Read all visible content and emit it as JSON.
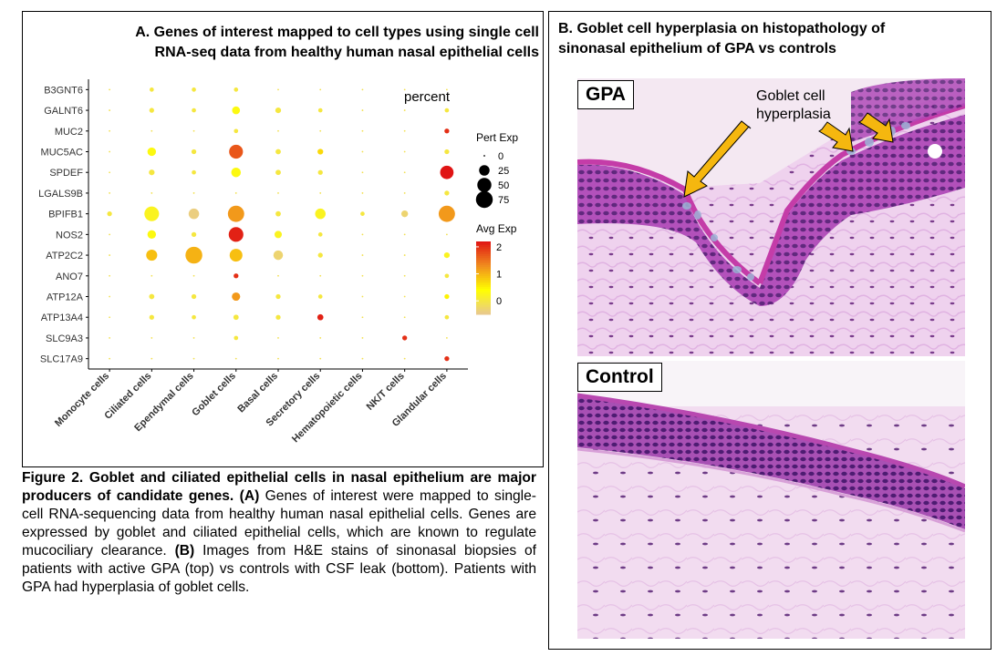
{
  "panelA": {
    "title_line1": "A. Genes of interest mapped to cell types using single cell",
    "title_line2": "RNA-seq data from healthy human nasal epithelial cells"
  },
  "panelB": {
    "title_line1": "B. Goblet cell hyperplasia on histopathology of",
    "title_line2": "sinonasal epithelium of GPA vs controls",
    "gpa_label": "GPA",
    "control_label": "Control",
    "annotation_line1": "Goblet cell",
    "annotation_line2": "hyperplasia"
  },
  "caption": {
    "bold": "Figure 2. Goblet and ciliated epithelial cells in nasal epithelium are major producers of candidate genes.",
    "bold_a": "(A)",
    "text_a": "Genes of interest were mapped to single-cell RNA-sequencing data from healthy human nasal epithelial cells. Genes are expressed by goblet and ciliated epithelial cells, which are known to regulate mucociliary clearance.",
    "bold_b": "(B)",
    "text_b": "Images from H&E stains of sinonasal biopsies of patients with active GPA (top) vs controls with CSF leak (bottom). Patients with GPA had hyperplasia of goblet cells."
  },
  "chart_data": {
    "type": "scatter",
    "subtype": "dot-plot",
    "genes": [
      "B3GNT6",
      "GALNT6",
      "MUC2",
      "MUC5AC",
      "SPDEF",
      "LGALS9B",
      "BPIFB1",
      "NOS2",
      "ATP2C2",
      "ANO7",
      "ATP12A",
      "ATP13A4",
      "SLC9A3",
      "SLC17A9"
    ],
    "cell_types": [
      "Monocyte cells",
      "Ciliated cells",
      "Ependymal cells",
      "Goblet cells",
      "Basal cells",
      "Secretory cells",
      "Hematopoietic cells",
      "NK/T cells",
      "Glandular cells"
    ],
    "percent_label": "percent",
    "legend_size_title": "Pert Exp",
    "legend_size_values": [
      0,
      25,
      50,
      75
    ],
    "legend_color_title": "Avg Exp",
    "legend_color_values": [
      2,
      1,
      0
    ],
    "color_range": [
      -0.5,
      2.2
    ],
    "color_stops": [
      "#e8c890",
      "#ffff00",
      "#f08c1e",
      "#e01414"
    ],
    "points": [
      {
        "gene": "B3GNT6",
        "cell": "Monocyte cells",
        "pct": 1,
        "avg": -0.1
      },
      {
        "gene": "B3GNT6",
        "cell": "Ciliated cells",
        "pct": 2,
        "avg": 0
      },
      {
        "gene": "B3GNT6",
        "cell": "Ependymal cells",
        "pct": 2,
        "avg": 0
      },
      {
        "gene": "B3GNT6",
        "cell": "Goblet cells",
        "pct": 2,
        "avg": 0
      },
      {
        "gene": "B3GNT6",
        "cell": "Basal cells",
        "pct": 1,
        "avg": -0.1
      },
      {
        "gene": "B3GNT6",
        "cell": "Secretory cells",
        "pct": 1,
        "avg": -0.1
      },
      {
        "gene": "B3GNT6",
        "cell": "Hematopoietic cells",
        "pct": 1,
        "avg": -0.1
      },
      {
        "gene": "B3GNT6",
        "cell": "NK/T cells",
        "pct": 1,
        "avg": -0.1
      },
      {
        "gene": "B3GNT6",
        "cell": "Glandular cells",
        "pct": 1,
        "avg": -0.1
      },
      {
        "gene": "GALNT6",
        "cell": "Monocyte cells",
        "pct": 1,
        "avg": -0.1
      },
      {
        "gene": "GALNT6",
        "cell": "Ciliated cells",
        "pct": 3,
        "avg": 0
      },
      {
        "gene": "GALNT6",
        "cell": "Ependymal cells",
        "pct": 2,
        "avg": 0
      },
      {
        "gene": "GALNT6",
        "cell": "Goblet cells",
        "pct": 12,
        "avg": 0.3
      },
      {
        "gene": "GALNT6",
        "cell": "Basal cells",
        "pct": 5,
        "avg": 0
      },
      {
        "gene": "GALNT6",
        "cell": "Secretory cells",
        "pct": 2,
        "avg": 0
      },
      {
        "gene": "GALNT6",
        "cell": "Hematopoietic cells",
        "pct": 1,
        "avg": -0.1
      },
      {
        "gene": "GALNT6",
        "cell": "NK/T cells",
        "pct": 1,
        "avg": -0.1
      },
      {
        "gene": "GALNT6",
        "cell": "Glandular cells",
        "pct": 2,
        "avg": 0
      },
      {
        "gene": "MUC2",
        "cell": "Monocyte cells",
        "pct": 1,
        "avg": -0.1
      },
      {
        "gene": "MUC2",
        "cell": "Ciliated cells",
        "pct": 1,
        "avg": -0.1
      },
      {
        "gene": "MUC2",
        "cell": "Ependymal cells",
        "pct": 1,
        "avg": -0.1
      },
      {
        "gene": "MUC2",
        "cell": "Goblet cells",
        "pct": 2,
        "avg": 0
      },
      {
        "gene": "MUC2",
        "cell": "Basal cells",
        "pct": 1,
        "avg": -0.1
      },
      {
        "gene": "MUC2",
        "cell": "Secretory cells",
        "pct": 1,
        "avg": -0.1
      },
      {
        "gene": "MUC2",
        "cell": "Hematopoietic cells",
        "pct": 1,
        "avg": -0.1
      },
      {
        "gene": "MUC2",
        "cell": "NK/T cells",
        "pct": 1,
        "avg": -0.1
      },
      {
        "gene": "MUC2",
        "cell": "Glandular cells",
        "pct": 3,
        "avg": 2.0
      },
      {
        "gene": "MUC5AC",
        "cell": "Monocyte cells",
        "pct": 1,
        "avg": -0.1
      },
      {
        "gene": "MUC5AC",
        "cell": "Ciliated cells",
        "pct": 15,
        "avg": 0.3
      },
      {
        "gene": "MUC5AC",
        "cell": "Ependymal cells",
        "pct": 3,
        "avg": 0
      },
      {
        "gene": "MUC5AC",
        "cell": "Goblet cells",
        "pct": 48,
        "avg": 1.7
      },
      {
        "gene": "MUC5AC",
        "cell": "Basal cells",
        "pct": 4,
        "avg": 0
      },
      {
        "gene": "MUC5AC",
        "cell": "Secretory cells",
        "pct": 5,
        "avg": 0.7
      },
      {
        "gene": "MUC5AC",
        "cell": "Hematopoietic cells",
        "pct": 1,
        "avg": -0.1
      },
      {
        "gene": "MUC5AC",
        "cell": "NK/T cells",
        "pct": 1,
        "avg": -0.1
      },
      {
        "gene": "MUC5AC",
        "cell": "Glandular cells",
        "pct": 3,
        "avg": 0
      },
      {
        "gene": "SPDEF",
        "cell": "Monocyte cells",
        "pct": 1,
        "avg": -0.1
      },
      {
        "gene": "SPDEF",
        "cell": "Ciliated cells",
        "pct": 5,
        "avg": 0
      },
      {
        "gene": "SPDEF",
        "cell": "Ependymal cells",
        "pct": 2,
        "avg": 0
      },
      {
        "gene": "SPDEF",
        "cell": "Goblet cells",
        "pct": 20,
        "avg": 0.3
      },
      {
        "gene": "SPDEF",
        "cell": "Basal cells",
        "pct": 4,
        "avg": 0
      },
      {
        "gene": "SPDEF",
        "cell": "Secretory cells",
        "pct": 3,
        "avg": 0
      },
      {
        "gene": "SPDEF",
        "cell": "Hematopoietic cells",
        "pct": 1,
        "avg": -0.1
      },
      {
        "gene": "SPDEF",
        "cell": "NK/T cells",
        "pct": 1,
        "avg": -0.1
      },
      {
        "gene": "SPDEF",
        "cell": "Glandular cells",
        "pct": 45,
        "avg": 2.2
      },
      {
        "gene": "LGALS9B",
        "cell": "Monocyte cells",
        "pct": 1,
        "avg": -0.1
      },
      {
        "gene": "LGALS9B",
        "cell": "Ciliated cells",
        "pct": 1,
        "avg": -0.1
      },
      {
        "gene": "LGALS9B",
        "cell": "Ependymal cells",
        "pct": 1,
        "avg": -0.1
      },
      {
        "gene": "LGALS9B",
        "cell": "Goblet cells",
        "pct": 1,
        "avg": -0.1
      },
      {
        "gene": "LGALS9B",
        "cell": "Basal cells",
        "pct": 1,
        "avg": -0.1
      },
      {
        "gene": "LGALS9B",
        "cell": "Secretory cells",
        "pct": 1,
        "avg": -0.1
      },
      {
        "gene": "LGALS9B",
        "cell": "Hematopoietic cells",
        "pct": 1,
        "avg": -0.1
      },
      {
        "gene": "LGALS9B",
        "cell": "NK/T cells",
        "pct": 1,
        "avg": -0.1
      },
      {
        "gene": "LGALS9B",
        "cell": "Glandular cells",
        "pct": 3,
        "avg": 0
      },
      {
        "gene": "BPIFB1",
        "cell": "Monocyte cells",
        "pct": 3,
        "avg": 0
      },
      {
        "gene": "BPIFB1",
        "cell": "Ciliated cells",
        "pct": 55,
        "avg": 0.2
      },
      {
        "gene": "BPIFB1",
        "cell": "Ependymal cells",
        "pct": 25,
        "avg": -0.4
      },
      {
        "gene": "BPIFB1",
        "cell": "Goblet cells",
        "pct": 70,
        "avg": 1.2
      },
      {
        "gene": "BPIFB1",
        "cell": "Basal cells",
        "pct": 4,
        "avg": 0
      },
      {
        "gene": "BPIFB1",
        "cell": "Secretory cells",
        "pct": 25,
        "avg": 0.2
      },
      {
        "gene": "BPIFB1",
        "cell": "Hematopoietic cells",
        "pct": 2,
        "avg": 0
      },
      {
        "gene": "BPIFB1",
        "cell": "NK/T cells",
        "pct": 8,
        "avg": -0.3
      },
      {
        "gene": "BPIFB1",
        "cell": "Glandular cells",
        "pct": 70,
        "avg": 1.2
      },
      {
        "gene": "NOS2",
        "cell": "Monocyte cells",
        "pct": 1,
        "avg": -0.1
      },
      {
        "gene": "NOS2",
        "cell": "Ciliated cells",
        "pct": 15,
        "avg": 0.3
      },
      {
        "gene": "NOS2",
        "cell": "Ependymal cells",
        "pct": 3,
        "avg": 0
      },
      {
        "gene": "NOS2",
        "cell": "Goblet cells",
        "pct": 55,
        "avg": 2.1
      },
      {
        "gene": "NOS2",
        "cell": "Basal cells",
        "pct": 10,
        "avg": 0.2
      },
      {
        "gene": "NOS2",
        "cell": "Secretory cells",
        "pct": 2,
        "avg": 0
      },
      {
        "gene": "NOS2",
        "cell": "Hematopoietic cells",
        "pct": 1,
        "avg": -0.1
      },
      {
        "gene": "NOS2",
        "cell": "NK/T cells",
        "pct": 1,
        "avg": -0.1
      },
      {
        "gene": "NOS2",
        "cell": "Glandular cells",
        "pct": 1,
        "avg": -0.1
      },
      {
        "gene": "ATP2C2",
        "cell": "Monocyte cells",
        "pct": 1,
        "avg": -0.1
      },
      {
        "gene": "ATP2C2",
        "cell": "Ciliated cells",
        "pct": 28,
        "avg": 0.9
      },
      {
        "gene": "ATP2C2",
        "cell": "Ependymal cells",
        "pct": 75,
        "avg": 1.0
      },
      {
        "gene": "ATP2C2",
        "cell": "Goblet cells",
        "pct": 40,
        "avg": 0.9
      },
      {
        "gene": "ATP2C2",
        "cell": "Basal cells",
        "pct": 20,
        "avg": -0.3
      },
      {
        "gene": "ATP2C2",
        "cell": "Secretory cells",
        "pct": 3,
        "avg": 0
      },
      {
        "gene": "ATP2C2",
        "cell": "Hematopoietic cells",
        "pct": 1,
        "avg": -0.1
      },
      {
        "gene": "ATP2C2",
        "cell": "NK/T cells",
        "pct": 1,
        "avg": -0.1
      },
      {
        "gene": "ATP2C2",
        "cell": "Glandular cells",
        "pct": 5,
        "avg": 0.2
      },
      {
        "gene": "ANO7",
        "cell": "Monocyte cells",
        "pct": 1,
        "avg": -0.1
      },
      {
        "gene": "ANO7",
        "cell": "Ciliated cells",
        "pct": 1,
        "avg": -0.1
      },
      {
        "gene": "ANO7",
        "cell": "Ependymal cells",
        "pct": 1,
        "avg": -0.1
      },
      {
        "gene": "ANO7",
        "cell": "Goblet cells",
        "pct": 3,
        "avg": 2.0
      },
      {
        "gene": "ANO7",
        "cell": "Basal cells",
        "pct": 1,
        "avg": -0.1
      },
      {
        "gene": "ANO7",
        "cell": "Secretory cells",
        "pct": 1,
        "avg": -0.1
      },
      {
        "gene": "ANO7",
        "cell": "Hematopoietic cells",
        "pct": 1,
        "avg": -0.1
      },
      {
        "gene": "ANO7",
        "cell": "NK/T cells",
        "pct": 1,
        "avg": -0.1
      },
      {
        "gene": "ANO7",
        "cell": "Glandular cells",
        "pct": 2,
        "avg": 0
      },
      {
        "gene": "ATP12A",
        "cell": "Monocyte cells",
        "pct": 1,
        "avg": -0.1
      },
      {
        "gene": "ATP12A",
        "cell": "Ciliated cells",
        "pct": 4,
        "avg": 0
      },
      {
        "gene": "ATP12A",
        "cell": "Ependymal cells",
        "pct": 3,
        "avg": 0
      },
      {
        "gene": "ATP12A",
        "cell": "Goblet cells",
        "pct": 14,
        "avg": 1.2
      },
      {
        "gene": "ATP12A",
        "cell": "Basal cells",
        "pct": 3,
        "avg": 0
      },
      {
        "gene": "ATP12A",
        "cell": "Secretory cells",
        "pct": 2,
        "avg": 0
      },
      {
        "gene": "ATP12A",
        "cell": "Hematopoietic cells",
        "pct": 1,
        "avg": -0.1
      },
      {
        "gene": "ATP12A",
        "cell": "NK/T cells",
        "pct": 1,
        "avg": -0.1
      },
      {
        "gene": "ATP12A",
        "cell": "Glandular cells",
        "pct": 3,
        "avg": 0.5
      },
      {
        "gene": "ATP13A4",
        "cell": "Monocyte cells",
        "pct": 1,
        "avg": -0.1
      },
      {
        "gene": "ATP13A4",
        "cell": "Ciliated cells",
        "pct": 3,
        "avg": 0
      },
      {
        "gene": "ATP13A4",
        "cell": "Ependymal cells",
        "pct": 2,
        "avg": 0
      },
      {
        "gene": "ATP13A4",
        "cell": "Goblet cells",
        "pct": 4,
        "avg": 0
      },
      {
        "gene": "ATP13A4",
        "cell": "Basal cells",
        "pct": 3,
        "avg": 0
      },
      {
        "gene": "ATP13A4",
        "cell": "Secretory cells",
        "pct": 6,
        "avg": 2.1
      },
      {
        "gene": "ATP13A4",
        "cell": "Hematopoietic cells",
        "pct": 1,
        "avg": -0.1
      },
      {
        "gene": "ATP13A4",
        "cell": "NK/T cells",
        "pct": 1,
        "avg": -0.1
      },
      {
        "gene": "ATP13A4",
        "cell": "Glandular cells",
        "pct": 2,
        "avg": 0
      },
      {
        "gene": "SLC9A3",
        "cell": "Monocyte cells",
        "pct": 1,
        "avg": -0.1
      },
      {
        "gene": "SLC9A3",
        "cell": "Ciliated cells",
        "pct": 1,
        "avg": -0.1
      },
      {
        "gene": "SLC9A3",
        "cell": "Ependymal cells",
        "pct": 1,
        "avg": -0.1
      },
      {
        "gene": "SLC9A3",
        "cell": "Goblet cells",
        "pct": 2,
        "avg": 0
      },
      {
        "gene": "SLC9A3",
        "cell": "Basal cells",
        "pct": 1,
        "avg": -0.1
      },
      {
        "gene": "SLC9A3",
        "cell": "Secretory cells",
        "pct": 1,
        "avg": -0.1
      },
      {
        "gene": "SLC9A3",
        "cell": "Hematopoietic cells",
        "pct": 1,
        "avg": -0.1
      },
      {
        "gene": "SLC9A3",
        "cell": "NK/T cells",
        "pct": 3,
        "avg": 2.0
      },
      {
        "gene": "SLC9A3",
        "cell": "Glandular cells",
        "pct": 1,
        "avg": -0.1
      },
      {
        "gene": "SLC17A9",
        "cell": "Monocyte cells",
        "pct": 1,
        "avg": -0.1
      },
      {
        "gene": "SLC17A9",
        "cell": "Ciliated cells",
        "pct": 1,
        "avg": -0.1
      },
      {
        "gene": "SLC17A9",
        "cell": "Ependymal cells",
        "pct": 1,
        "avg": -0.1
      },
      {
        "gene": "SLC17A9",
        "cell": "Goblet cells",
        "pct": 1,
        "avg": -0.1
      },
      {
        "gene": "SLC17A9",
        "cell": "Basal cells",
        "pct": 1,
        "avg": -0.1
      },
      {
        "gene": "SLC17A9",
        "cell": "Secretory cells",
        "pct": 1,
        "avg": -0.1
      },
      {
        "gene": "SLC17A9",
        "cell": "Hematopoietic cells",
        "pct": 1,
        "avg": -0.1
      },
      {
        "gene": "SLC17A9",
        "cell": "NK/T cells",
        "pct": 1,
        "avg": -0.1
      },
      {
        "gene": "SLC17A9",
        "cell": "Glandular cells",
        "pct": 3,
        "avg": 2.0
      }
    ]
  }
}
